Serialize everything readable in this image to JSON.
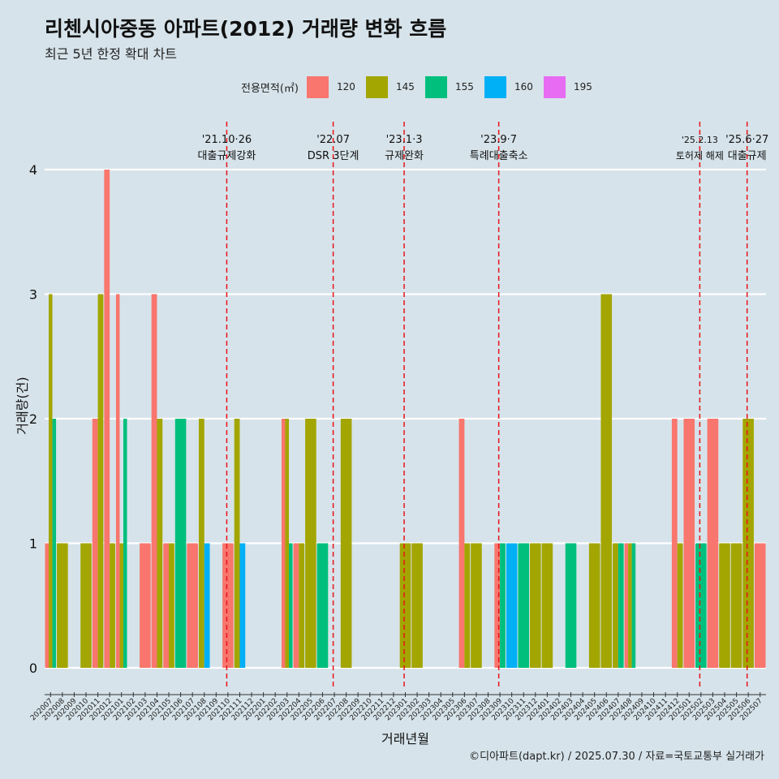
{
  "title": "리첸시아중동 아파트(2012) 거래량 변화 흐름",
  "subtitle": "최근 5년 한정 확대 차트",
  "caption": "©디아파트(dapt.kr) / 2025.07.30 / 자료=국토교통부 실거래가",
  "legend": {
    "title": "전용면적(㎡)",
    "items": [
      {
        "label": "120",
        "color": "#f8766d"
      },
      {
        "label": "145",
        "color": "#a3a500"
      },
      {
        "label": "155",
        "color": "#00bf7d"
      },
      {
        "label": "160",
        "color": "#00b0f6"
      },
      {
        "label": "195",
        "color": "#e76bf3"
      }
    ]
  },
  "chart_data": {
    "type": "bar",
    "xlabel": "거래년월",
    "ylabel": "거래량(건)",
    "ylim": [
      0,
      4
    ],
    "yticks": [
      0,
      1,
      2,
      3,
      4
    ],
    "grid": true,
    "legend_position": "top",
    "categories": [
      "202007",
      "202008",
      "202009",
      "202010",
      "202011",
      "202012",
      "202101",
      "202102",
      "202103",
      "202104",
      "202105",
      "202106",
      "202107",
      "202108",
      "202109",
      "202110",
      "202111",
      "202112",
      "202201",
      "202202",
      "202203",
      "202204",
      "202205",
      "202206",
      "202207",
      "202208",
      "202209",
      "202210",
      "202211",
      "202212",
      "202301",
      "202302",
      "202303",
      "202304",
      "202305",
      "202306",
      "202307",
      "202308",
      "202309",
      "202310",
      "202311",
      "202312",
      "202401",
      "202402",
      "202403",
      "202404",
      "202405",
      "202406",
      "202407",
      "202408",
      "202409",
      "202410",
      "202411",
      "202412",
      "202501",
      "202502",
      "202503",
      "202504",
      "202505",
      "202506",
      "202507"
    ],
    "series": [
      {
        "name": "120",
        "color": "#f8766d",
        "values": [
          1,
          0,
          0,
          0,
          2,
          4,
          3,
          0,
          1,
          3,
          1,
          0,
          1,
          0,
          0,
          1,
          0,
          0,
          0,
          0,
          2,
          1,
          0,
          0,
          0,
          0,
          0,
          0,
          0,
          0,
          0,
          0,
          0,
          0,
          0,
          2,
          0,
          0,
          1,
          0,
          0,
          0,
          0,
          0,
          0,
          0,
          0,
          0,
          0,
          1,
          0,
          0,
          0,
          2,
          2,
          0,
          2,
          0,
          0,
          0,
          1
        ]
      },
      {
        "name": "145",
        "color": "#a3a500",
        "values": [
          3,
          1,
          0,
          1,
          3,
          1,
          1,
          0,
          0,
          2,
          1,
          0,
          0,
          2,
          0,
          0,
          2,
          0,
          0,
          0,
          2,
          1,
          2,
          0,
          0,
          2,
          0,
          0,
          0,
          0,
          1,
          1,
          0,
          0,
          0,
          1,
          1,
          0,
          0,
          0,
          0,
          1,
          1,
          0,
          0,
          0,
          1,
          3,
          1,
          1,
          0,
          0,
          0,
          1,
          0,
          0,
          0,
          1,
          1,
          2,
          0
        ]
      },
      {
        "name": "155",
        "color": "#00bf7d",
        "values": [
          2,
          0,
          0,
          0,
          0,
          0,
          2,
          0,
          0,
          0,
          0,
          2,
          0,
          0,
          0,
          0,
          0,
          0,
          0,
          0,
          1,
          0,
          0,
          1,
          0,
          0,
          0,
          0,
          0,
          0,
          0,
          0,
          0,
          0,
          0,
          0,
          0,
          0,
          1,
          0,
          1,
          0,
          0,
          0,
          1,
          0,
          0,
          0,
          1,
          1,
          0,
          0,
          0,
          0,
          0,
          1,
          0,
          0,
          0,
          0,
          0
        ]
      },
      {
        "name": "160",
        "color": "#00b0f6",
        "values": [
          0,
          0,
          0,
          0,
          0,
          0,
          0,
          0,
          0,
          0,
          0,
          0,
          0,
          1,
          0,
          0,
          1,
          0,
          0,
          0,
          0,
          0,
          0,
          0,
          0,
          0,
          0,
          0,
          0,
          0,
          0,
          0,
          0,
          0,
          0,
          0,
          0,
          0,
          0,
          1,
          0,
          0,
          0,
          0,
          0,
          0,
          0,
          0,
          0,
          0,
          0,
          0,
          0,
          0,
          0,
          0,
          0,
          0,
          0,
          0,
          0
        ]
      },
      {
        "name": "195",
        "color": "#e76bf3",
        "values": [
          0,
          0,
          0,
          0,
          0,
          0,
          0,
          0,
          0,
          0,
          0,
          0,
          0,
          0,
          0,
          0,
          0,
          0,
          0,
          0,
          0,
          0,
          0,
          0,
          0,
          0,
          0,
          0,
          0,
          0,
          0,
          0,
          0,
          0,
          0,
          0,
          0,
          0,
          0,
          0,
          0,
          0,
          0,
          0,
          0,
          0,
          0,
          0,
          0,
          0,
          0,
          0,
          0,
          0,
          0,
          0,
          0,
          0,
          0,
          0,
          0
        ]
      }
    ],
    "annotations": [
      {
        "x": 15.4,
        "date": "'21.10·26",
        "label": "대출규제강화"
      },
      {
        "x": 24.4,
        "date": "'22.07",
        "label": "DSR 3단계"
      },
      {
        "x": 30.4,
        "date": "'23.1·3",
        "label": "규제완화"
      },
      {
        "x": 38.4,
        "date": "'23.9·7",
        "label": "특례대출축소"
      },
      {
        "x": 55.4,
        "date": "'25.2.13",
        "label": "토허제 해제"
      },
      {
        "x": 59.4,
        "date": "'25.6·27",
        "label": "대출규제"
      }
    ]
  }
}
